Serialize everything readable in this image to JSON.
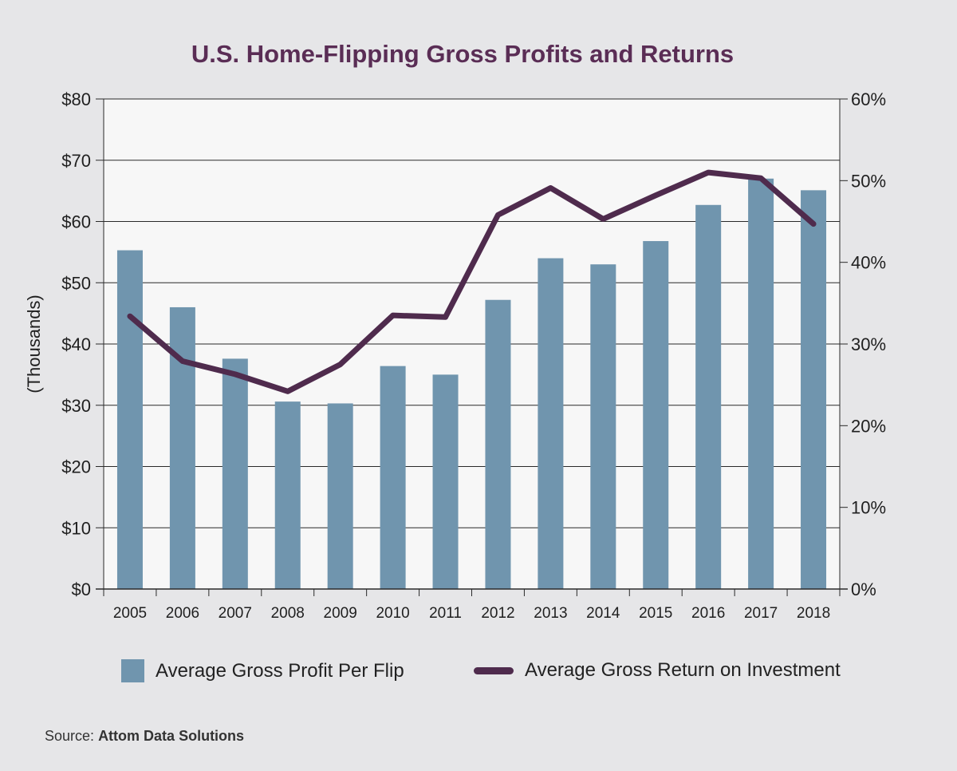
{
  "title": "U.S. Home-Flipping Gross Profits and Returns",
  "source": {
    "prefix": "Source:",
    "name": "Attom Data Solutions"
  },
  "colors": {
    "bars": "#7095ae",
    "line": "#4f2b4d",
    "title": "#5a2d55",
    "plot_bg": "#f7f7f7",
    "page_bg": "#e6e6e8"
  },
  "chart_data": {
    "type": "bar",
    "categories": [
      "2005",
      "2006",
      "2007",
      "2008",
      "2009",
      "2010",
      "2011",
      "2012",
      "2013",
      "2014",
      "2015",
      "2016",
      "2017",
      "2018"
    ],
    "ylabel": "(Thousands)",
    "ylim": [
      0,
      80
    ],
    "y2lim": [
      0,
      60
    ],
    "y_ticks": [
      "$0",
      "$10",
      "$20",
      "$30",
      "$40",
      "$50",
      "$60",
      "$70",
      "$80"
    ],
    "y2_ticks": [
      "0%",
      "10%",
      "20%",
      "30%",
      "40%",
      "50%",
      "60%"
    ],
    "grid": true,
    "legend_position": "bottom",
    "series": [
      {
        "name": "Average Gross Profit Per Flip",
        "type": "bar",
        "axis": "left",
        "values": [
          55.3,
          46.0,
          37.6,
          30.6,
          30.3,
          36.4,
          35.0,
          47.2,
          54.0,
          53.0,
          56.8,
          62.7,
          67.0,
          65.1
        ]
      },
      {
        "name": "Average Gross Return on Investment",
        "type": "line",
        "axis": "right",
        "values": [
          33.4,
          27.9,
          26.3,
          24.2,
          27.5,
          33.5,
          33.3,
          45.8,
          49.1,
          45.3,
          48.2,
          51.0,
          50.3,
          44.7
        ]
      }
    ]
  }
}
